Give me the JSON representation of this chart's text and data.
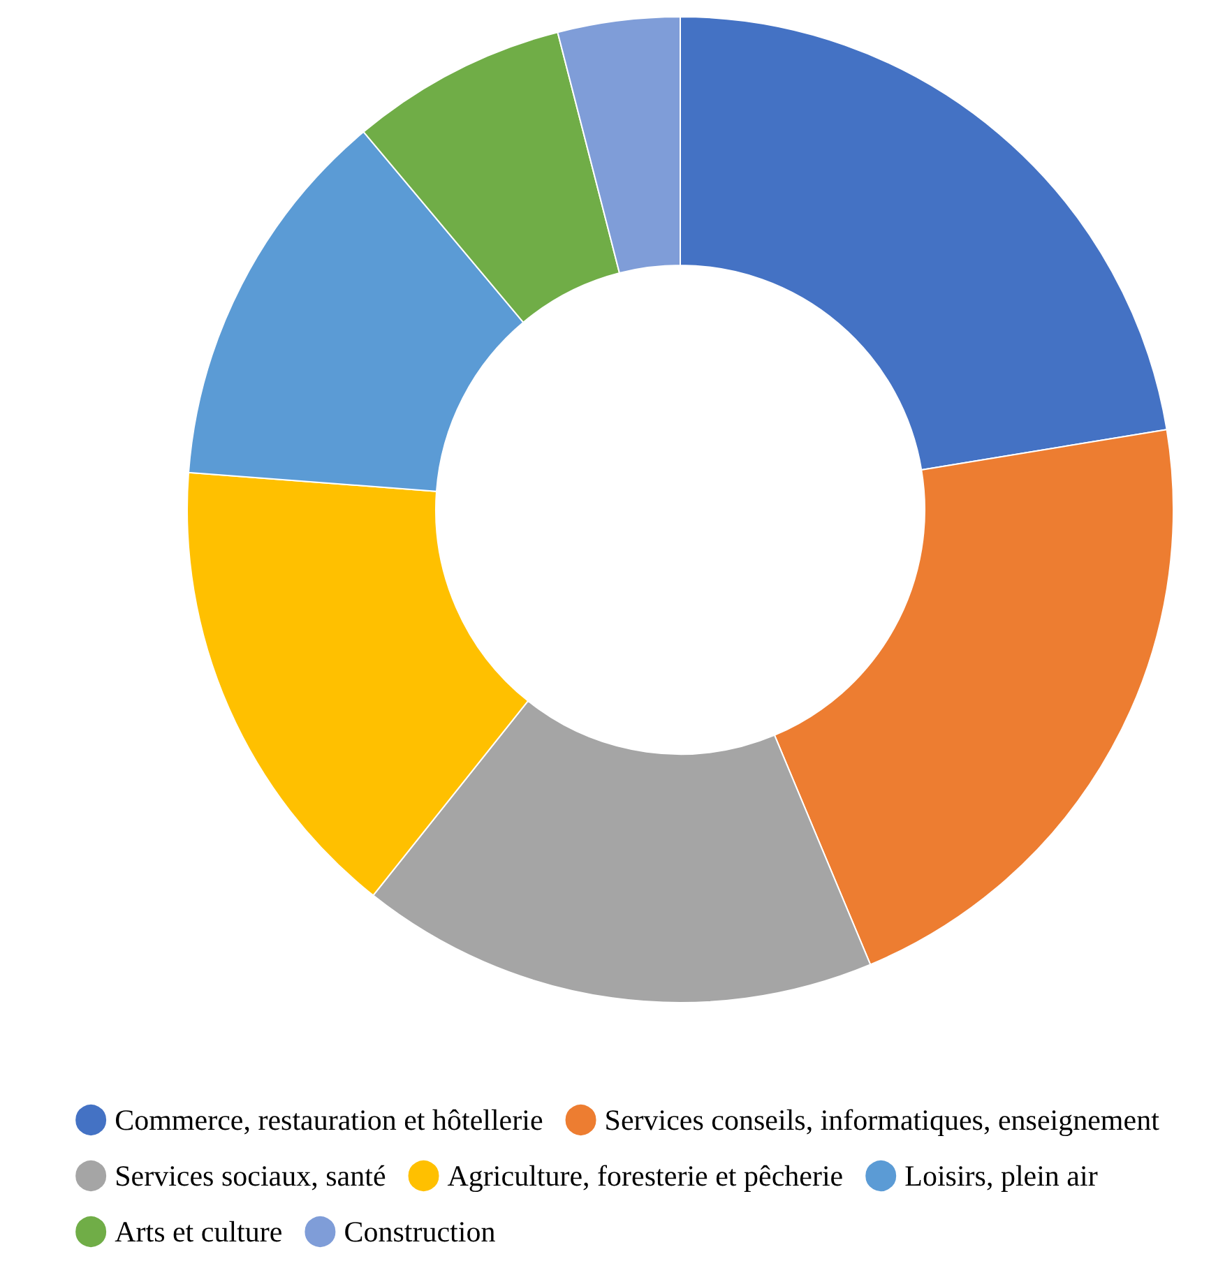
{
  "chart_data": {
    "type": "donut",
    "categories": [
      "Commerce, restauration et hôtellerie",
      "Services conseils, informatiques, enseignement",
      "Services sociaux, santé",
      "Agriculture, foresterie et pêcherie",
      "Loisirs, plein air",
      "Arts et culture",
      "Construction"
    ],
    "values": [
      22.4,
      21.3,
      17.0,
      15.5,
      12.7,
      7.1,
      4.0
    ],
    "colors": [
      "#4472c4",
      "#ed7d31",
      "#a5a5a5",
      "#ffc000",
      "#5b9bd5",
      "#70ad47",
      "#7f9dd8"
    ],
    "legend": "bottom"
  }
}
